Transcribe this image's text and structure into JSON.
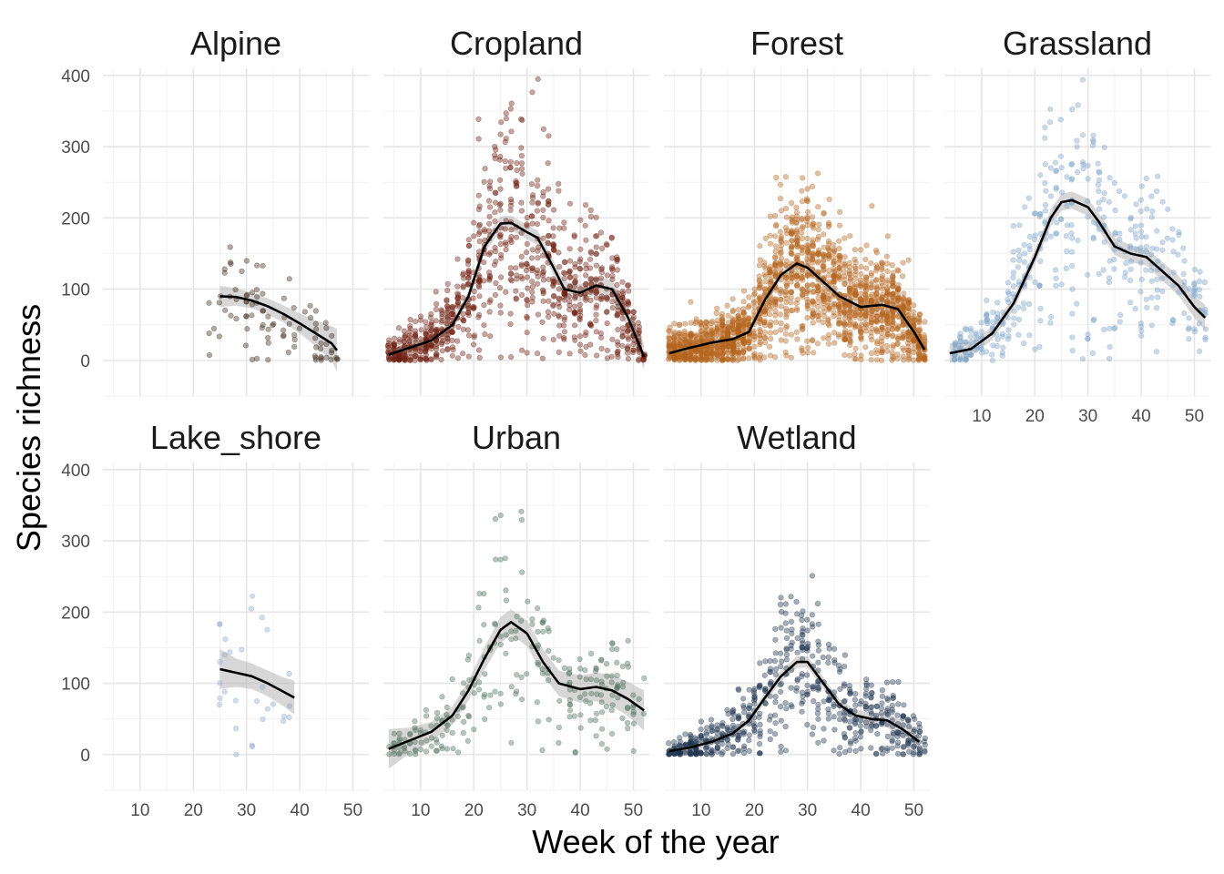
{
  "chart_data": {
    "type": "scatter",
    "subtype": "faceted scatter with smoothed trend and confidence band",
    "xlabel": "Week of the year",
    "ylabel": "Species richness",
    "xlim": [
      3,
      53
    ],
    "ylim": [
      -50,
      410
    ],
    "x_ticks": [
      10,
      20,
      30,
      40,
      50
    ],
    "y_ticks": [
      0,
      100,
      200,
      300,
      400
    ],
    "grid": true,
    "legend": "none",
    "facets": [
      {
        "name": "Alpine",
        "color": "#3f2a1c",
        "n_points": 90,
        "week_range": [
          23,
          47
        ],
        "smooth": [
          [
            25,
            90
          ],
          [
            28,
            89
          ],
          [
            31,
            84
          ],
          [
            34,
            76
          ],
          [
            37,
            65
          ],
          [
            40,
            52
          ],
          [
            43,
            38
          ],
          [
            46,
            24
          ],
          [
            47,
            14
          ]
        ],
        "band_halfwidth": [
          15,
          12,
          11,
          11,
          12,
          14,
          18,
          24,
          30
        ]
      },
      {
        "name": "Cropland",
        "color": "#6e1f0f",
        "n_points": 900,
        "week_range": [
          4,
          52
        ],
        "smooth": [
          [
            4,
            8
          ],
          [
            8,
            18
          ],
          [
            12,
            28
          ],
          [
            16,
            50
          ],
          [
            19,
            90
          ],
          [
            22,
            160
          ],
          [
            25,
            192
          ],
          [
            27,
            193
          ],
          [
            30,
            180
          ],
          [
            32,
            172
          ],
          [
            35,
            130
          ],
          [
            37,
            100
          ],
          [
            40,
            95
          ],
          [
            43,
            105
          ],
          [
            46,
            100
          ],
          [
            49,
            60
          ],
          [
            52,
            5
          ]
        ],
        "band_halfwidth": [
          10,
          7,
          6,
          7,
          8,
          9,
          10,
          10,
          10,
          10,
          10,
          11,
          12,
          12,
          13,
          15,
          18
        ]
      },
      {
        "name": "Forest",
        "color": "#b5651d",
        "n_points": 1800,
        "week_range": [
          4,
          52
        ],
        "smooth": [
          [
            4,
            10
          ],
          [
            8,
            18
          ],
          [
            12,
            25
          ],
          [
            16,
            30
          ],
          [
            19,
            40
          ],
          [
            22,
            85
          ],
          [
            25,
            120
          ],
          [
            28,
            136
          ],
          [
            30,
            130
          ],
          [
            33,
            110
          ],
          [
            36,
            90
          ],
          [
            40,
            75
          ],
          [
            44,
            78
          ],
          [
            47,
            72
          ],
          [
            50,
            40
          ],
          [
            52,
            15
          ]
        ],
        "band_halfwidth": [
          8,
          6,
          5,
          5,
          5,
          6,
          7,
          7,
          7,
          7,
          7,
          7,
          8,
          10,
          12,
          14
        ]
      },
      {
        "name": "Grassland",
        "color": "#7ba2c8",
        "n_points": 420,
        "week_range": [
          4,
          52
        ],
        "smooth": [
          [
            4,
            10
          ],
          [
            8,
            16
          ],
          [
            12,
            38
          ],
          [
            16,
            80
          ],
          [
            20,
            145
          ],
          [
            23,
            200
          ],
          [
            25,
            222
          ],
          [
            27,
            225
          ],
          [
            30,
            215
          ],
          [
            32,
            195
          ],
          [
            35,
            160
          ],
          [
            38,
            150
          ],
          [
            41,
            145
          ],
          [
            44,
            125
          ],
          [
            47,
            105
          ],
          [
            50,
            75
          ],
          [
            52,
            60
          ]
        ],
        "band_halfwidth": [
          14,
          10,
          9,
          9,
          10,
          12,
          12,
          12,
          12,
          12,
          12,
          12,
          12,
          13,
          14,
          15,
          18
        ]
      },
      {
        "name": "Lake_shore",
        "color": "#8fa8cc",
        "n_points": 30,
        "week_range": [
          25,
          39
        ],
        "smooth": [
          [
            25,
            120
          ],
          [
            28,
            115
          ],
          [
            31,
            110
          ],
          [
            34,
            100
          ],
          [
            37,
            88
          ],
          [
            39,
            80
          ]
        ],
        "band_halfwidth": [
          28,
          20,
          18,
          18,
          20,
          24
        ]
      },
      {
        "name": "Urban",
        "color": "#4a6e5a",
        "n_points": 260,
        "week_range": [
          4,
          52
        ],
        "smooth": [
          [
            4,
            8
          ],
          [
            8,
            20
          ],
          [
            12,
            32
          ],
          [
            16,
            55
          ],
          [
            19,
            90
          ],
          [
            22,
            135
          ],
          [
            25,
            175
          ],
          [
            27,
            186
          ],
          [
            30,
            170
          ],
          [
            33,
            130
          ],
          [
            36,
            100
          ],
          [
            40,
            92
          ],
          [
            43,
            95
          ],
          [
            46,
            90
          ],
          [
            49,
            78
          ],
          [
            52,
            62
          ]
        ],
        "band_halfwidth": [
          28,
          18,
          14,
          13,
          14,
          16,
          18,
          18,
          18,
          18,
          18,
          19,
          20,
          22,
          24,
          28
        ]
      },
      {
        "name": "Wetland",
        "color": "#1f3550",
        "n_points": 600,
        "week_range": [
          4,
          52
        ],
        "smooth": [
          [
            4,
            5
          ],
          [
            8,
            10
          ],
          [
            12,
            18
          ],
          [
            16,
            30
          ],
          [
            19,
            48
          ],
          [
            22,
            80
          ],
          [
            25,
            110
          ],
          [
            28,
            130
          ],
          [
            30,
            130
          ],
          [
            33,
            100
          ],
          [
            36,
            70
          ],
          [
            39,
            55
          ],
          [
            42,
            50
          ],
          [
            45,
            48
          ],
          [
            48,
            35
          ],
          [
            51,
            18
          ]
        ],
        "band_halfwidth": [
          8,
          6,
          5,
          5,
          6,
          7,
          8,
          8,
          8,
          8,
          8,
          8,
          9,
          10,
          12,
          15
        ]
      }
    ]
  }
}
